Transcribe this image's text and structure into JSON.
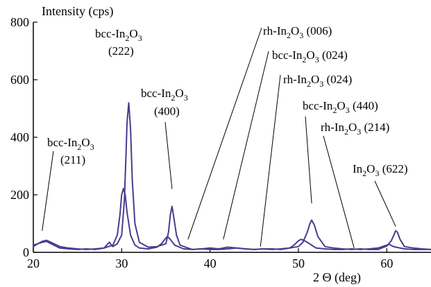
{
  "chart_data": {
    "type": "line",
    "xlabel": "2 Θ (deg)",
    "ylabel": "Intensity (cps)",
    "xlim": [
      20,
      65
    ],
    "ylim": [
      0,
      800
    ],
    "x_ticks": [
      20,
      30,
      40,
      50,
      60
    ],
    "y_ticks": [
      0,
      200,
      400,
      600,
      800
    ],
    "grid": false,
    "line_color": "#4b3a8f",
    "series": [
      {
        "x": [
          20.0,
          20.5,
          21.0,
          21.5,
          22.0,
          23.0,
          24.0,
          25.0,
          26.0,
          27.0,
          28.0,
          28.6,
          29.0,
          29.5,
          30.0,
          30.3,
          30.5,
          30.6,
          30.8,
          31.0,
          31.2,
          31.5,
          32.0,
          33.0,
          34.0,
          35.0,
          35.3,
          35.5,
          35.7,
          35.9,
          36.2,
          36.6,
          37.5,
          38.0,
          39.0,
          40.0,
          41.0,
          42.0,
          43.0,
          44.0,
          45.0,
          46.0,
          47.0,
          48.0,
          49.0,
          50.0,
          50.5,
          51.0,
          51.3,
          51.5,
          51.8,
          52.2,
          53.0,
          54.0,
          55.0,
          56.0,
          57.0,
          58.0,
          59.0,
          60.0,
          60.5,
          60.8,
          61.0,
          61.2,
          61.5,
          62.0,
          63.0,
          64.0,
          65.0
        ],
        "values": [
          25,
          30,
          35,
          38,
          30,
          15,
          12,
          10,
          12,
          10,
          15,
          35,
          20,
          30,
          60,
          180,
          350,
          450,
          520,
          430,
          250,
          100,
          35,
          18,
          20,
          30,
          70,
          130,
          160,
          120,
          60,
          25,
          15,
          10,
          12,
          10,
          10,
          12,
          15,
          12,
          10,
          12,
          12,
          10,
          15,
          20,
          35,
          70,
          100,
          112,
          95,
          55,
          20,
          15,
          12,
          10,
          12,
          10,
          10,
          22,
          40,
          60,
          75,
          70,
          45,
          20,
          15,
          12,
          10
        ]
      },
      {
        "x": [
          20.0,
          20.5,
          21.0,
          21.5,
          22.0,
          23.0,
          24.0,
          25.0,
          26.0,
          27.0,
          28.0,
          29.0,
          29.5,
          29.8,
          30.0,
          30.2,
          30.4,
          30.6,
          31.0,
          31.5,
          32.0,
          33.0,
          34.0,
          34.5,
          35.0,
          35.2,
          35.5,
          36.0,
          37.0,
          38.0,
          39.0,
          40.0,
          41.0,
          42.0,
          43.0,
          44.0,
          45.0,
          46.0,
          47.0,
          48.0,
          49.0,
          49.5,
          50.0,
          50.3,
          50.6,
          51.0,
          51.5,
          52.0,
          53.0,
          54.0,
          55.0,
          56.0,
          57.0,
          58.0,
          59.0,
          59.5,
          60.0,
          60.3,
          60.6,
          61.0,
          62.0,
          63.0,
          64.0,
          65.0
        ],
        "values": [
          20,
          30,
          38,
          42,
          35,
          20,
          15,
          12,
          10,
          12,
          15,
          25,
          60,
          130,
          200,
          222,
          200,
          140,
          60,
          25,
          15,
          12,
          18,
          30,
          50,
          55,
          45,
          25,
          12,
          10,
          12,
          15,
          12,
          18,
          15,
          12,
          10,
          12,
          10,
          12,
          15,
          25,
          40,
          45,
          42,
          35,
          25,
          15,
          12,
          10,
          10,
          12,
          10,
          12,
          15,
          20,
          25,
          28,
          22,
          18,
          12,
          10,
          10,
          10
        ]
      }
    ],
    "annotations": [
      {
        "text": "bcc-In2O3",
        "sub": "(211)",
        "x": 21.0,
        "y": 75
      },
      {
        "text": "bcc-In2O3",
        "sub": "(222)",
        "x": null,
        "y": null
      },
      {
        "text": "bcc-In2O3",
        "sub": "(400)",
        "x": 35.7,
        "y": 220
      },
      {
        "text": "rh-In2O3 (006)",
        "x": 37.5,
        "y": 45
      },
      {
        "text": "bcc-In2O3 (024)",
        "x": 41.5,
        "y": 45
      },
      {
        "text": "rh-In2O3 (024)",
        "x": 45.7,
        "y": 20
      },
      {
        "text": "bcc-In2O3 (440)",
        "x": 51.5,
        "y": 170
      },
      {
        "text": "rh-In2O3 (214)",
        "x": 56.3,
        "y": 15
      },
      {
        "text": "In2O3 (622)",
        "x": 61.0,
        "y": 90
      }
    ]
  }
}
